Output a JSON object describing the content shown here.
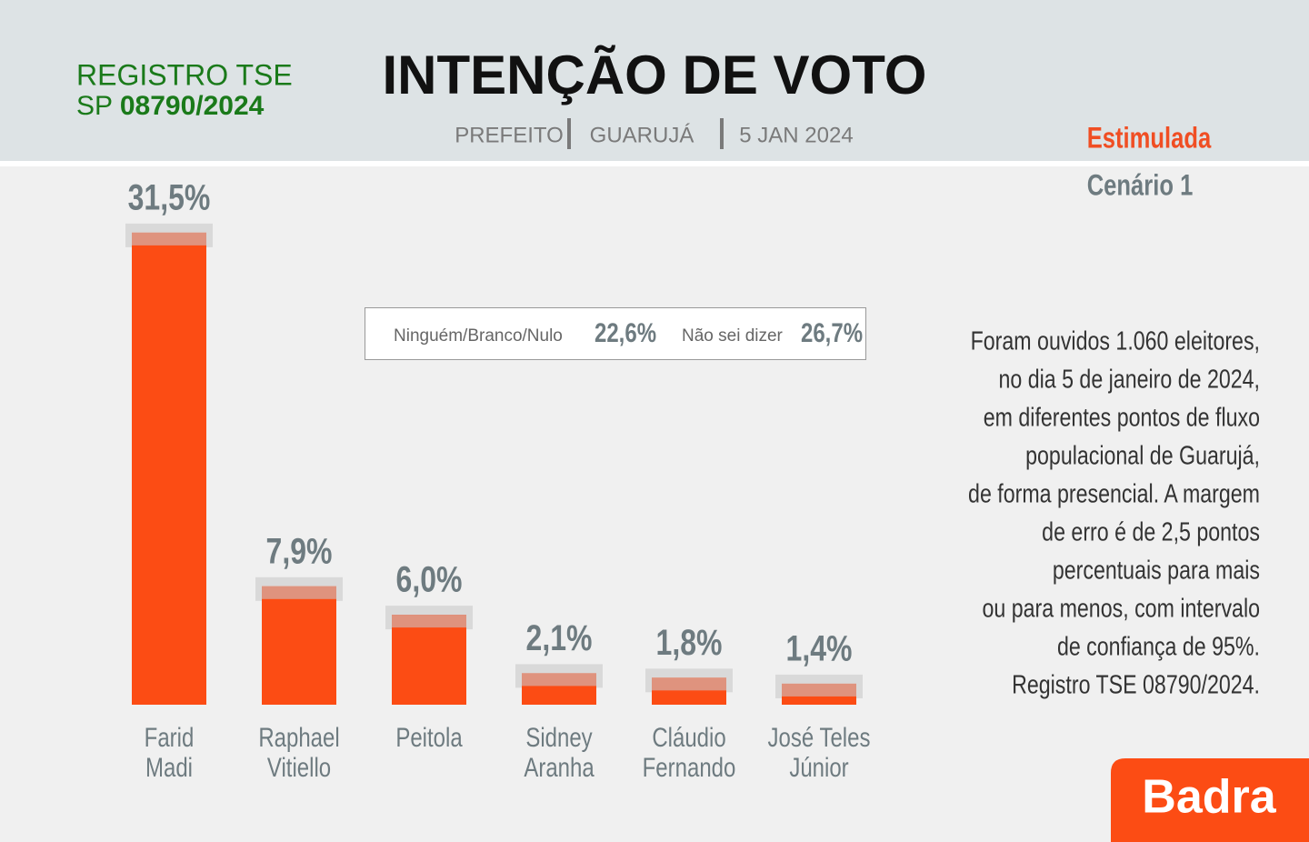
{
  "header": {
    "registry": {
      "line1": "REGISTRO TSE",
      "prefix": "SP",
      "number": "08790/2024"
    },
    "subtitle": [
      "PREFEITO",
      "GUARUJÁ",
      "5 JAN 2024"
    ],
    "mode": "Estimulada",
    "scenario": "Cenário 1"
  },
  "chart_data": {
    "type": "bar",
    "title": "INTENÇÃO DE VOTO",
    "categories": [
      [
        "Farid",
        "Madi"
      ],
      [
        "Raphael",
        "Vitiello"
      ],
      [
        "Peitola"
      ],
      [
        "Sidney",
        "Aranha"
      ],
      [
        "Cláudio",
        "Fernando"
      ],
      [
        "José Teles",
        "Júnior"
      ]
    ],
    "values": [
      31.5,
      7.9,
      6.0,
      2.1,
      1.8,
      1.4
    ],
    "value_labels": [
      "31,5%",
      "7,9%",
      "6,0%",
      "2,1%",
      "1,8%",
      "1,4%"
    ],
    "color": "#fc4c14"
  },
  "others": [
    {
      "label": "Ninguém/Branco/Nulo",
      "value": "22,6%"
    },
    {
      "label": "Não sei dizer",
      "value": "26,7%"
    }
  ],
  "note": [
    "Foram ouvidos 1.060 eleitores,",
    "no dia 5 de janeiro de 2024,",
    "em diferentes pontos de fluxo",
    "populacional de Guarujá,",
    "de forma presencial. A margem",
    "de erro é de 2,5 pontos",
    "percentuais para mais",
    "ou para menos,  com intervalo",
    "de confiança de 95%.",
    "Registro TSE 08790/2024."
  ],
  "logo": "Badra"
}
